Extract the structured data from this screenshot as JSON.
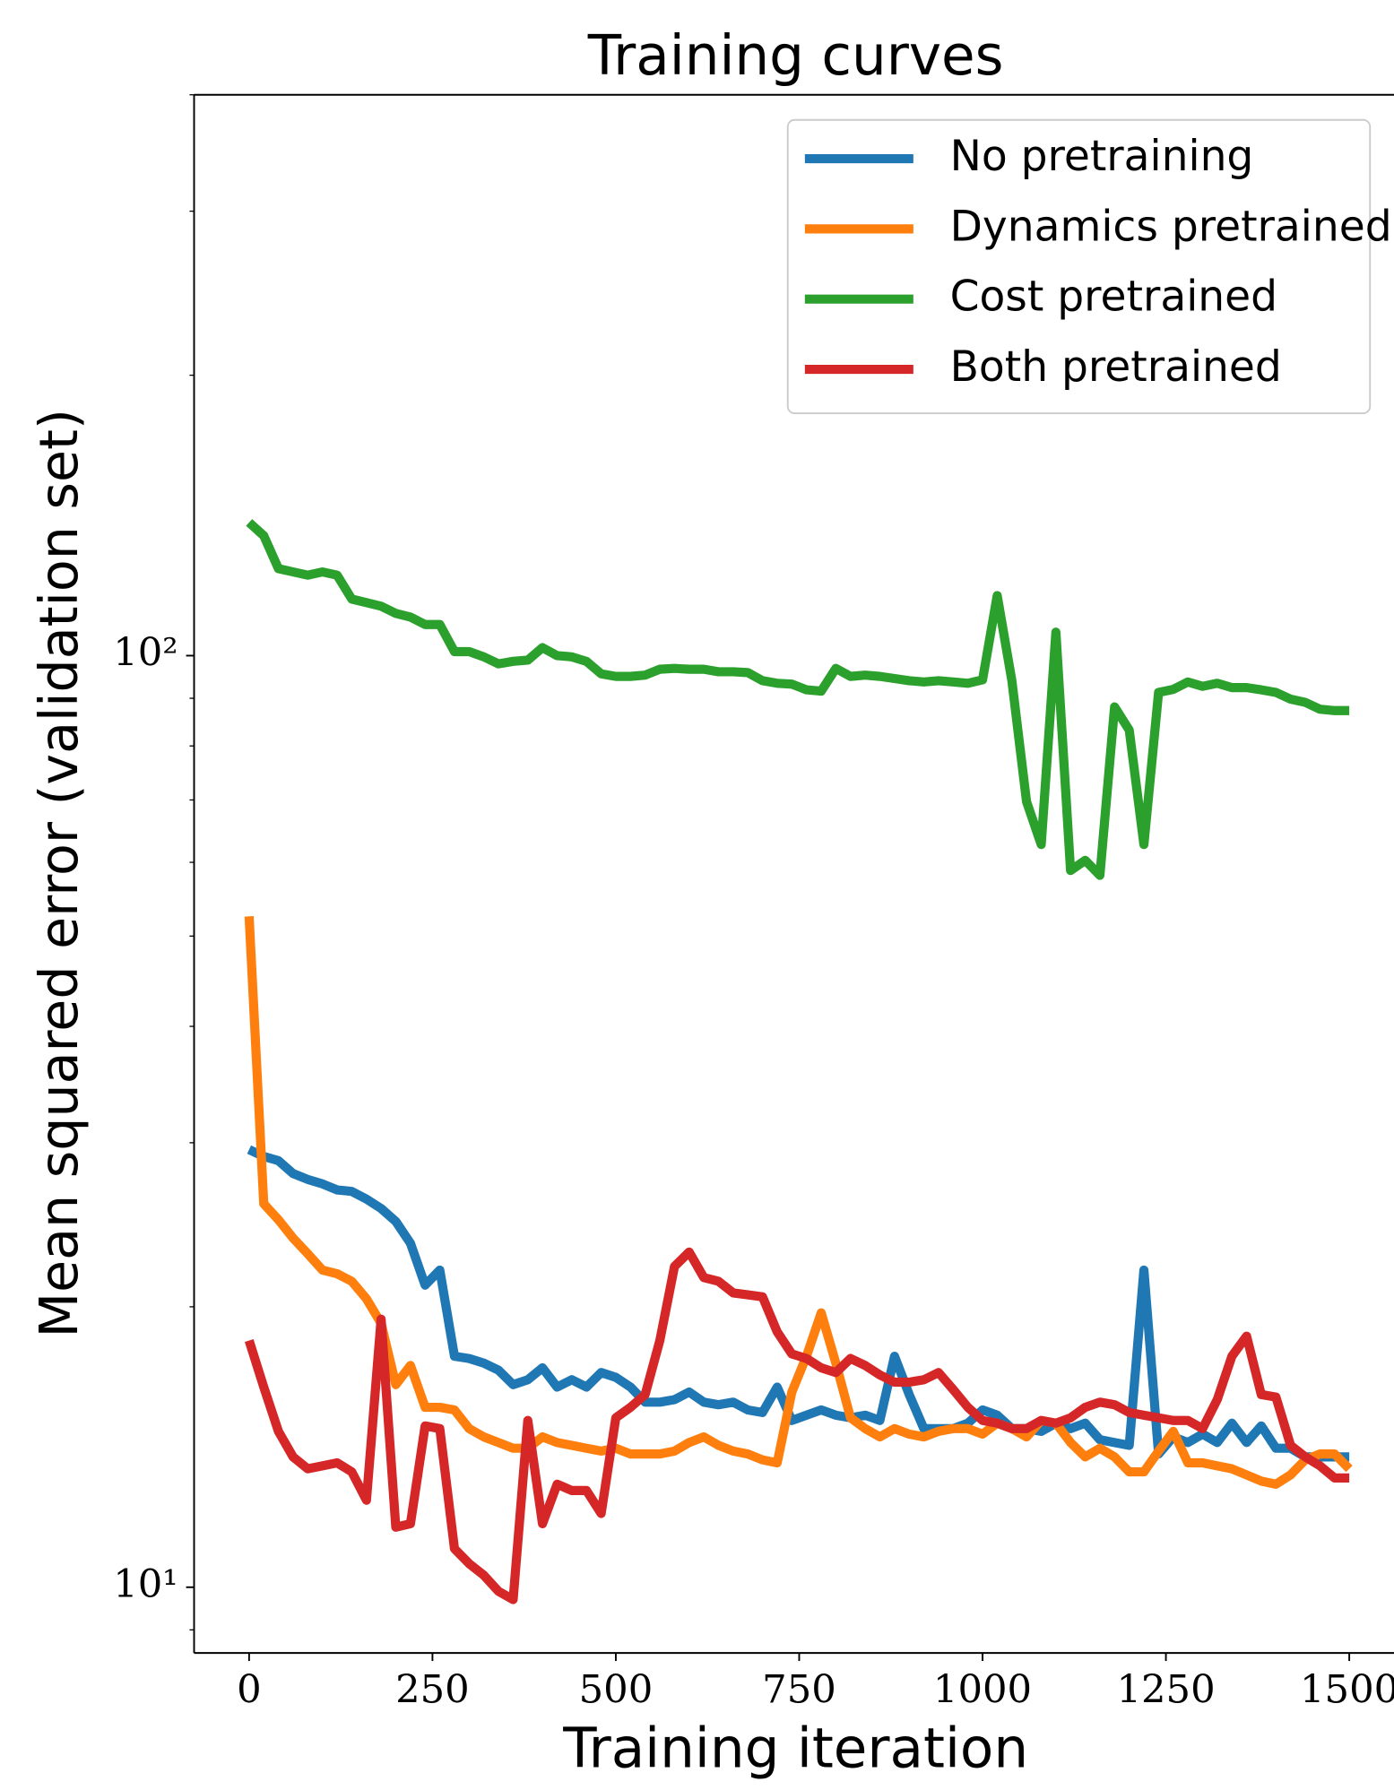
{
  "chart_data": {
    "type": "line",
    "title": "Training curves",
    "xlabel": "Training iteration",
    "ylabel": "Mean squared error (validation set)",
    "x": [
      0,
      20,
      40,
      60,
      80,
      100,
      120,
      140,
      160,
      180,
      200,
      220,
      240,
      260,
      280,
      300,
      320,
      340,
      360,
      380,
      400,
      420,
      440,
      460,
      480,
      500,
      520,
      540,
      560,
      580,
      600,
      620,
      640,
      660,
      680,
      700,
      720,
      740,
      760,
      780,
      800,
      820,
      840,
      860,
      880,
      900,
      920,
      940,
      960,
      980,
      1000,
      1020,
      1040,
      1060,
      1080,
      1100,
      1120,
      1140,
      1160,
      1180,
      1200,
      1220,
      1240,
      1260,
      1280,
      1300,
      1320,
      1340,
      1360,
      1380,
      1400,
      1420,
      1440,
      1460,
      1480,
      1500
    ],
    "series": [
      {
        "name": "No pretraining",
        "color": "#1f77b4",
        "values": [
          29.5,
          29.0,
          28.7,
          27.8,
          27.4,
          27.1,
          26.7,
          26.6,
          26.1,
          25.5,
          24.7,
          23.4,
          21.1,
          21.9,
          17.7,
          17.6,
          17.4,
          17.1,
          16.5,
          16.7,
          17.2,
          16.4,
          16.7,
          16.4,
          17.0,
          16.8,
          16.4,
          15.8,
          15.8,
          15.9,
          16.2,
          15.8,
          15.7,
          15.8,
          15.5,
          15.4,
          16.4,
          15.1,
          15.3,
          15.5,
          15.3,
          15.2,
          15.3,
          15.1,
          17.7,
          16.1,
          14.8,
          14.8,
          14.8,
          15.0,
          15.5,
          15.3,
          14.8,
          14.8,
          14.7,
          15.0,
          14.8,
          15.0,
          14.4,
          14.3,
          14.2,
          21.9,
          13.9,
          14.5,
          14.3,
          14.6,
          14.3,
          15.0,
          14.3,
          14.9,
          14.1,
          14.1,
          13.8,
          13.8,
          13.8,
          13.8
        ]
      },
      {
        "name": "Dynamics pretrained",
        "color": "#ff7f0e",
        "values": [
          52.5,
          25.8,
          24.8,
          23.7,
          22.8,
          21.9,
          21.7,
          21.3,
          20.4,
          19.2,
          16.5,
          17.3,
          15.6,
          15.6,
          15.5,
          14.8,
          14.5,
          14.3,
          14.1,
          14.1,
          14.5,
          14.3,
          14.2,
          14.1,
          14.0,
          14.1,
          13.9,
          13.9,
          13.9,
          14.0,
          14.3,
          14.5,
          14.2,
          14.0,
          13.9,
          13.7,
          13.6,
          16.2,
          17.7,
          19.7,
          17.4,
          15.2,
          14.8,
          14.5,
          14.8,
          14.6,
          14.5,
          14.7,
          14.8,
          14.8,
          14.6,
          15.0,
          14.8,
          14.5,
          15.1,
          15.0,
          14.3,
          13.8,
          14.1,
          13.8,
          13.3,
          13.3,
          14.0,
          14.7,
          13.6,
          13.6,
          13.5,
          13.4,
          13.2,
          13.0,
          12.9,
          13.2,
          13.7,
          13.9,
          13.9,
          13.4
        ]
      },
      {
        "name": "Cost pretrained",
        "color": "#2ca02c",
        "values": [
          139,
          134.5,
          124,
          123,
          122,
          123,
          122,
          115,
          114,
          113,
          111,
          110,
          108,
          108,
          101,
          101,
          99.7,
          98,
          98.6,
          98.9,
          102,
          100,
          99.7,
          98.6,
          95.6,
          95,
          95,
          95.3,
          96.7,
          96.9,
          96.7,
          96.7,
          96.1,
          96.1,
          95.9,
          94,
          93.4,
          93.2,
          91.9,
          91.6,
          96.9,
          95,
          95.3,
          95,
          94.5,
          94,
          93.7,
          94,
          93.7,
          93.4,
          94.2,
          116,
          94,
          69.7,
          62.7,
          106,
          58.8,
          60.3,
          58.1,
          88.1,
          83.2,
          62.7,
          91.3,
          92,
          93.7,
          92.7,
          93.4,
          92.4,
          92.4,
          91.9,
          91.3,
          89.8,
          89.1,
          87.6,
          87.3,
          87.3
        ]
      },
      {
        "name": "Both pretrained",
        "color": "#d62728",
        "values": [
          18.4,
          16.4,
          14.7,
          13.8,
          13.4,
          13.5,
          13.6,
          13.3,
          12.4,
          19.4,
          11.6,
          11.7,
          14.9,
          14.8,
          11.0,
          10.6,
          10.3,
          9.9,
          9.7,
          15.1,
          11.7,
          12.9,
          12.7,
          12.7,
          12.0,
          15.2,
          15.6,
          16.1,
          18.4,
          22.1,
          22.9,
          21.5,
          21.3,
          20.7,
          20.6,
          20.5,
          18.8,
          17.8,
          17.6,
          17.2,
          17.0,
          17.6,
          17.3,
          16.9,
          16.6,
          16.6,
          16.7,
          17.0,
          16.3,
          15.6,
          15.1,
          15.0,
          14.8,
          14.8,
          15.1,
          15.0,
          15.2,
          15.6,
          15.8,
          15.7,
          15.4,
          15.3,
          15.2,
          15.1,
          15.1,
          14.8,
          15.9,
          17.7,
          18.6,
          16.1,
          16.0,
          14.2,
          13.8,
          13.5,
          13.1,
          13.1
        ]
      }
    ],
    "xlim": [
      -75,
      1575
    ],
    "xticks": [
      0,
      250,
      500,
      750,
      1000,
      1250,
      1500
    ],
    "ylim": [
      8.5,
      400
    ],
    "log_y": true,
    "yticks": [
      {
        "value": 10,
        "label": "10¹"
      },
      {
        "value": 100,
        "label": "10²"
      }
    ],
    "yminorticks": [
      9,
      20,
      30,
      40,
      50,
      60,
      70,
      80,
      90,
      200,
      300,
      400
    ],
    "legend": "upper right",
    "grid": false
  }
}
